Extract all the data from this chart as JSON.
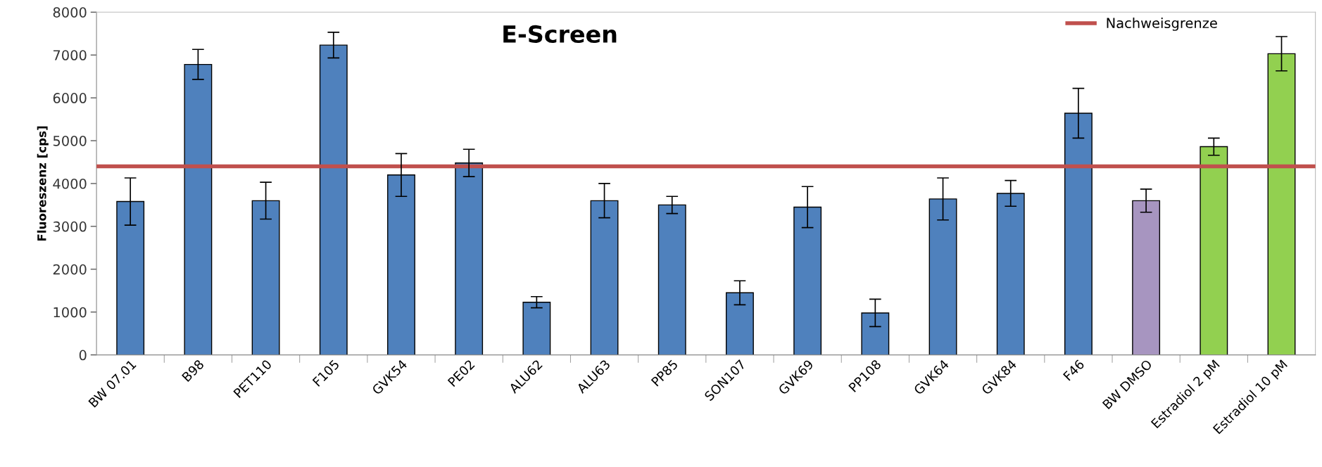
{
  "chart_data": {
    "type": "bar",
    "title": "E-Screen",
    "ylabel": "Fluoreszenz [cps]",
    "categories": [
      "BW 07.01",
      "B98",
      "PET110",
      "F105",
      "GVK54",
      "PE02",
      "ALU62",
      "ALU63",
      "PP85",
      "SON107",
      "GVK69",
      "PP108",
      "GVK64",
      "GVK84",
      "F46",
      "BW DMSO",
      "Estradiol 2 pM",
      "Estradiol 10 pM"
    ],
    "values": [
      3580,
      6780,
      3600,
      7230,
      4200,
      4480,
      1230,
      3600,
      3500,
      1450,
      3450,
      980,
      3640,
      3770,
      5640,
      3600,
      4860,
      7030
    ],
    "errors": [
      550,
      350,
      430,
      300,
      500,
      320,
      130,
      400,
      200,
      280,
      480,
      320,
      490,
      300,
      580,
      270,
      200,
      400
    ],
    "colors": [
      "#4f81bd",
      "#4f81bd",
      "#4f81bd",
      "#4f81bd",
      "#4f81bd",
      "#4f81bd",
      "#4f81bd",
      "#4f81bd",
      "#4f81bd",
      "#4f81bd",
      "#4f81bd",
      "#4f81bd",
      "#4f81bd",
      "#4f81bd",
      "#4f81bd",
      "#a795c0",
      "#92d050",
      "#92d050"
    ],
    "ref_lines": [
      {
        "axis": "y",
        "value": 4400,
        "label": "Nachweisgrenze",
        "color": "#c0504d",
        "line_style": "solid"
      }
    ],
    "ylim": [
      0,
      8000
    ],
    "yticks": [
      0,
      1000,
      2000,
      3000,
      4000,
      5000,
      6000,
      7000,
      8000
    ],
    "grid": false,
    "legend": "top right"
  }
}
